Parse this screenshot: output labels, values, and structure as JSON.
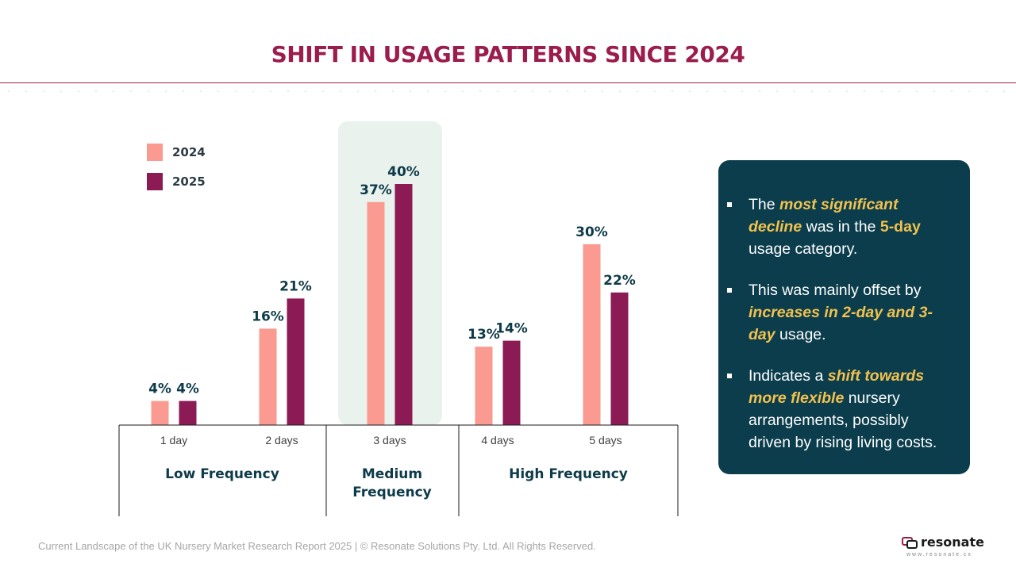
{
  "header": {
    "title": "SHIFT IN USAGE PATTERNS SINCE 2024"
  },
  "colors": {
    "accent": "#9b1d4d",
    "series_2024": "#fa9a90",
    "series_2025": "#8b1a55",
    "panel": "#0b3d4c",
    "highlight": "#f2c14e",
    "group_bg": "#e9f2ec",
    "label": "#0e3b4a"
  },
  "chart_data": {
    "type": "bar",
    "title": "",
    "categories": [
      "1 day",
      "2 days",
      "3 days",
      "4 days",
      "5 days"
    ],
    "series": [
      {
        "name": "2024",
        "values": [
          4,
          16,
          37,
          13,
          30
        ]
      },
      {
        "name": "2025",
        "values": [
          4,
          21,
          40,
          14,
          22
        ]
      }
    ],
    "data_labels": [
      [
        "4%",
        "16%",
        "37%",
        "13%",
        "30%"
      ],
      [
        "4%",
        "21%",
        "40%",
        "14%",
        "22%"
      ]
    ],
    "groups": [
      {
        "label": "Low Frequency",
        "categories": [
          "1 day",
          "2 days"
        ]
      },
      {
        "label": "Medium Frequency",
        "categories": [
          "3 days"
        ]
      },
      {
        "label": "High Frequency",
        "categories": [
          "4 days",
          "5 days"
        ]
      }
    ],
    "highlighted_group": "Medium Frequency",
    "ylim": [
      0,
      50
    ],
    "grid": false,
    "legend": "top-left"
  },
  "notes": {
    "items": [
      {
        "t1": "The ",
        "h1": "most significant decline",
        "t2": " was in the ",
        "h2": "5-day",
        "t3": " usage category."
      },
      {
        "t1": "This was mainly offset by ",
        "h1": "increases in 2-day and 3-day",
        "t2": " usage."
      },
      {
        "t1": "Indicates a ",
        "h1": "shift towards more flexible",
        "t2": " nursery arrangements, possibly driven by rising living costs."
      }
    ]
  },
  "footer": {
    "text": "Current Landscape of the UK Nursery Market Research Report 2025 | © Resonate Solutions Pty. Ltd. All Rights Reserved.",
    "brand": "resonate",
    "brand_url": "www.resonate.cx"
  }
}
